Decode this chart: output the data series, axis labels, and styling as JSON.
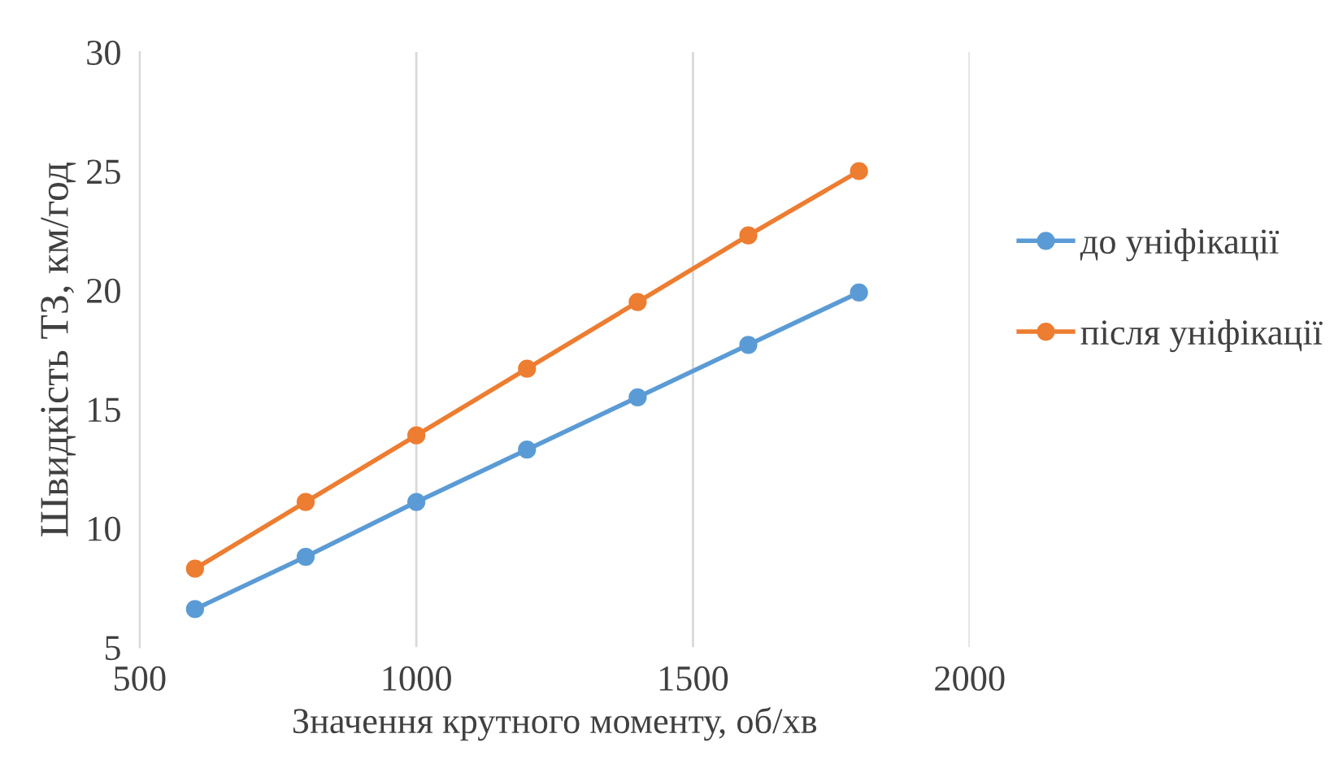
{
  "chart_data": {
    "type": "line",
    "xlabel": "Значення крутного моменту, об/хв",
    "ylabel": "Швидкість ТЗ, км/год",
    "x": [
      600,
      800,
      1000,
      1200,
      1400,
      1600,
      1800
    ],
    "series": [
      {
        "name": "до уніфікації",
        "color": "#5b9bd5",
        "values": [
          6.6,
          8.8,
          11.1,
          13.3,
          15.5,
          17.7,
          19.9
        ]
      },
      {
        "name": "після уніфікації",
        "color": "#ed7d31",
        "values": [
          8.3,
          11.1,
          13.9,
          16.7,
          19.5,
          22.3,
          25.0
        ]
      }
    ],
    "xlim": [
      500,
      2000
    ],
    "xticks": [
      500,
      1000,
      1500,
      2000
    ],
    "ylim": [
      5,
      30
    ],
    "yticks": [
      5,
      10,
      15,
      20,
      25,
      30
    ],
    "grid": "x",
    "legend": "right",
    "marker": "circle",
    "line_style": "solid"
  }
}
